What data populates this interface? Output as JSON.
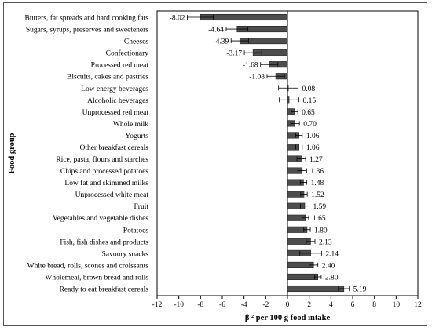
{
  "chart_data": {
    "type": "bar",
    "orientation": "horizontal",
    "xlabel": "β ² per 100 g food intake",
    "ylabel": "Food group",
    "xlim": [
      -12,
      12
    ],
    "xticks": [
      -12,
      -10,
      -8,
      -6,
      -4,
      -2,
      0,
      2,
      4,
      6,
      8,
      10,
      12
    ],
    "categories": [
      "Butters, fat spreads and hard cooking fats",
      "Sugars, syrups, preserves and sweeteners",
      "Cheeses",
      "Confectionary",
      "Processed red meat",
      "Biscuits, cakes and pastries",
      "Low energy beverages",
      "Alcoholic beverages",
      "Unprocessed red meat",
      "Whole milk",
      "Yogurts",
      "Other breakfast cereals",
      "Rice, pasta, flours and starches",
      "Chips and processed potatoes",
      "Low fat and skimmed milks",
      "Unprocessed white meat",
      "Fruit",
      "Vegetables and vegetable dishes",
      "Potatoes",
      "Fish, fish dishes and products",
      "Savoury snacks",
      "White bread, rolls, scones and croissants",
      "Wholemeal, brown bread and rolls",
      "Ready to eat breakfast cereals"
    ],
    "values": [
      -8.02,
      -4.64,
      -4.39,
      -3.17,
      -1.68,
      -1.08,
      0.08,
      0.15,
      0.65,
      0.7,
      1.06,
      1.06,
      1.27,
      1.36,
      1.48,
      1.52,
      1.59,
      1.65,
      1.8,
      2.13,
      2.14,
      2.4,
      2.8,
      5.19
    ],
    "value_labels": [
      "-8.02",
      "-4.64",
      "-4.39",
      "-3.17",
      "-1.68",
      "-1.08",
      "0.08",
      "0.15",
      "0.65",
      "0.70",
      "1.06",
      "1.06",
      "1.27",
      "1.36",
      "1.48",
      "1.52",
      "1.59",
      "1.65",
      "1.80",
      "2.13",
      "2.14",
      "2.40",
      "2.80",
      "5.19"
    ],
    "error": [
      1.2,
      1.0,
      0.8,
      0.8,
      0.8,
      0.8,
      0.9,
      0.9,
      0.3,
      0.4,
      0.3,
      0.3,
      0.4,
      0.4,
      0.3,
      0.3,
      0.4,
      0.3,
      0.3,
      0.4,
      1.0,
      0.4,
      0.3,
      0.5
    ],
    "bar_color": "#4d4d4d",
    "grid": false
  }
}
